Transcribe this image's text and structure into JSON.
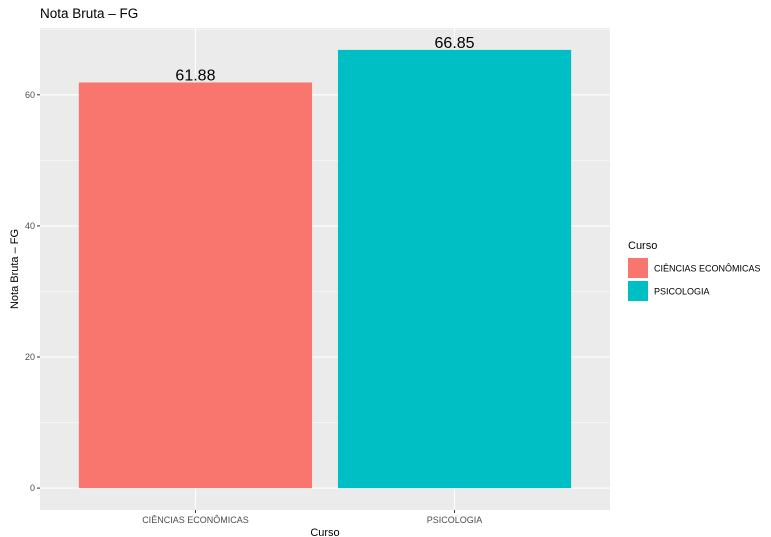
{
  "chart_data": {
    "type": "bar",
    "title": "Nota Bruta – FG",
    "xlabel": "Curso",
    "ylabel": "Nota Bruta – FG",
    "categories": [
      "CIÊNCIAS ECONÔMICAS",
      "PSICOLOGIA"
    ],
    "values": [
      61.88,
      66.85
    ],
    "value_labels": [
      "61.88",
      "66.85"
    ],
    "colors": [
      "#F8766D",
      "#00BFC4"
    ],
    "ylim": [
      -3.34,
      70.19
    ],
    "yticks": [
      0,
      20,
      40,
      60
    ],
    "ytick_labels": [
      "0",
      "20",
      "40",
      "60"
    ],
    "grid": true,
    "panel_background": "#EBEBEB",
    "legend": {
      "title": "Curso",
      "position": "right",
      "entries": [
        {
          "label": "CIÊNCIAS ECONÔMICAS",
          "color": "#F8766D"
        },
        {
          "label": "PSICOLOGIA",
          "color": "#00BFC4"
        }
      ]
    }
  }
}
